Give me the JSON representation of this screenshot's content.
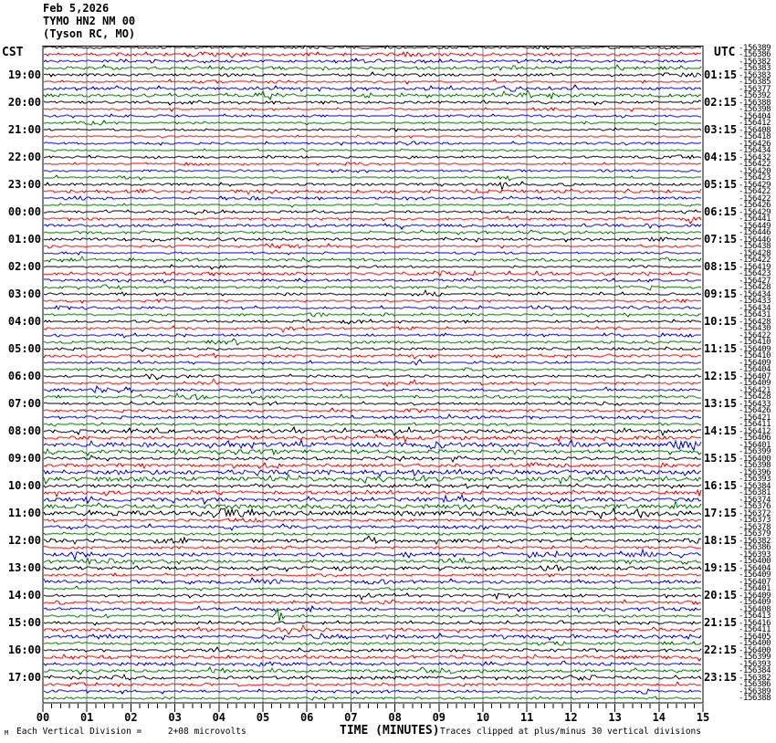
{
  "title": {
    "date": "Feb 5,2026",
    "station": "TYMO HN2 NM 00",
    "location": "(Tyson RC, MO)"
  },
  "axis": {
    "left_timezone": "CST",
    "right_timezone": "UTC",
    "x_title": "TIME (MINUTES)",
    "x_tick_labels": [
      "00",
      "01",
      "02",
      "03",
      "04",
      "05",
      "06",
      "07",
      "08",
      "09",
      "10",
      "11",
      "12",
      "13",
      "14",
      "15"
    ],
    "left_time_labels": [
      "19:00",
      "20:00",
      "21:00",
      "22:00",
      "23:00",
      "00:00",
      "01:00",
      "02:00",
      "03:00",
      "04:00",
      "05:00",
      "06:00",
      "07:00",
      "08:00",
      "09:00",
      "10:00",
      "11:00",
      "12:00",
      "13:00",
      "14:00",
      "15:00",
      "16:00",
      "17:00"
    ],
    "right_time_labels": [
      "01:15",
      "02:15",
      "03:15",
      "04:15",
      "05:15",
      "06:15",
      "07:15",
      "08:15",
      "09:15",
      "10:15",
      "11:15",
      "12:15",
      "13:15",
      "14:15",
      "15:15",
      "16:15",
      "17:15",
      "18:15",
      "19:15",
      "20:15",
      "21:15",
      "22:15",
      "23:15"
    ],
    "footer_scale_note": "Each Vertical Division =     2+08 microvolts",
    "footer_clip_note": "Traces clipped at plus/minus 30 vertical divisions",
    "watermark": "M"
  },
  "chart_data": {
    "type": "line",
    "subtype": "helicorder-seismogram",
    "title": "TYMO HN2 NM 00 (Tyson RC, MO) Feb 5,2026",
    "xlabel": "TIME (MINUTES)",
    "x_range_minutes": [
      0,
      15
    ],
    "minutes_per_row": 15,
    "rows": 96,
    "first_row_start_cst": "18:00",
    "hour_labels_every_n_rows": 4,
    "trace_color_cycle": [
      "#000000",
      "#ff0000",
      "#0000ee",
      "#007700"
    ],
    "grid_color": "#808080",
    "grid": "vertical lines every 1 minute",
    "scale_note": "Each Vertical Division = 2+08 microvolts",
    "clip_note": "Traces clipped at plus/minus 30 vertical divisions",
    "right_column_values": [
      -156389,
      -156386,
      -156382,
      -156383,
      -156383,
      -156385,
      -156377,
      -156392,
      -156388,
      -156398,
      -156404,
      -156412,
      -156408,
      -156418,
      -156426,
      -156434,
      -156432,
      -156422,
      -156420,
      -156423,
      -156429,
      -156422,
      -156422,
      -156426,
      -156429,
      -156441,
      -156449,
      -156446,
      -156446,
      -156438,
      -156428,
      -156422,
      -156419,
      -156423,
      -156427,
      -156428,
      -156434,
      -156433,
      -156434,
      -156431,
      -156428,
      -156430,
      -156422,
      -156410,
      -156409,
      -156410,
      -156409,
      -156404,
      -156407,
      -156409,
      -156421,
      -156428,
      -156433,
      -156426,
      -156421,
      -156411,
      -156412,
      -156406,
      -156401,
      -156399,
      -156400,
      -156398,
      -156396,
      -156393,
      -156384,
      -156381,
      -156374,
      -156376,
      -156372,
      -156373,
      -156378,
      -156379,
      -156382,
      -156386,
      -156393,
      -156400,
      -156404,
      -156409,
      -156407,
      -156401,
      -156409,
      -156409,
      -156408,
      -156413,
      -156416,
      -156411,
      -156405,
      -156400,
      -156400,
      -156399,
      -156393,
      -156384,
      -156382,
      -156386,
      -156389,
      -156388
    ],
    "events": [
      {
        "row_index": 83,
        "cst": "14:45",
        "minute": 5.3,
        "trace_color": "green",
        "note": "small impulsive spike on green trace"
      },
      {
        "row_index": 85,
        "cst": "15:15",
        "minute_range": [
          5.1,
          5.9
        ],
        "trace_color": "red",
        "note": "short noise burst on red trace"
      }
    ]
  }
}
